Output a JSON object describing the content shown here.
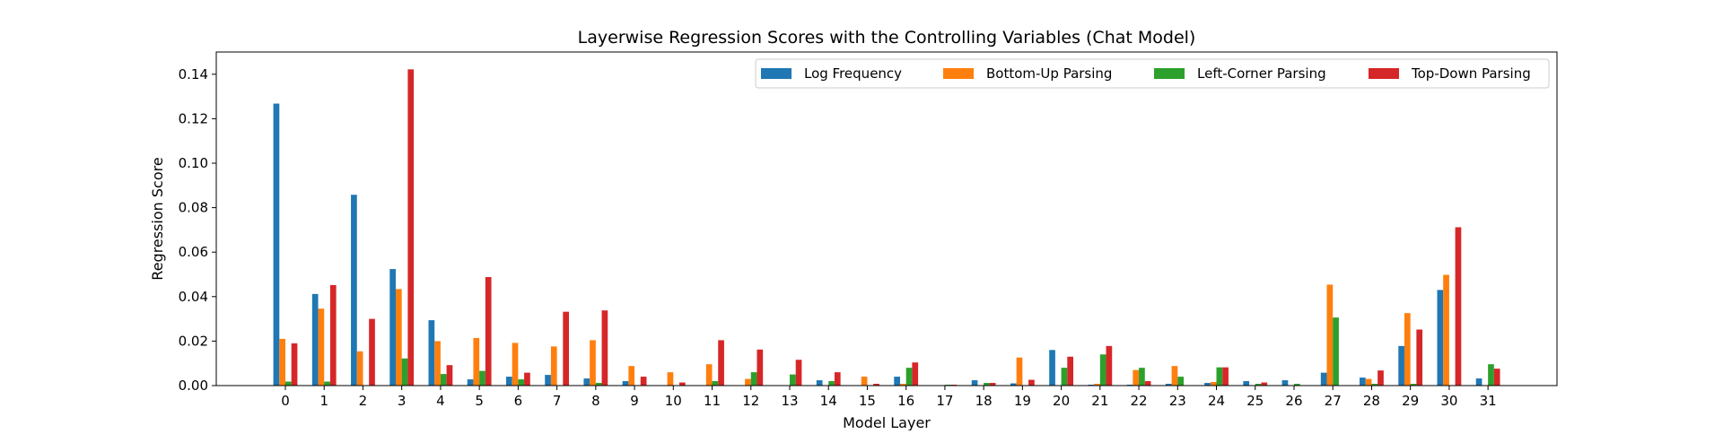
{
  "chart_data": {
    "type": "bar",
    "title": "Layerwise Regression Scores with the Controlling Variables (Chat Model)",
    "xlabel": "Model Layer",
    "ylabel": "Regression Score",
    "ylim": [
      0,
      0.15
    ],
    "yticks": [
      0.0,
      0.02,
      0.04,
      0.06,
      0.08,
      0.1,
      0.12,
      0.14
    ],
    "ytick_labels": [
      "0.00",
      "0.02",
      "0.04",
      "0.06",
      "0.08",
      "0.10",
      "0.12",
      "0.14"
    ],
    "categories": [
      "0",
      "1",
      "2",
      "3",
      "4",
      "5",
      "6",
      "7",
      "8",
      "9",
      "10",
      "11",
      "12",
      "13",
      "14",
      "15",
      "16",
      "17",
      "18",
      "19",
      "20",
      "21",
      "22",
      "23",
      "24",
      "25",
      "26",
      "27",
      "28",
      "29",
      "30",
      "31"
    ],
    "legend_position": "top-right",
    "grid": false,
    "series": [
      {
        "name": "Log Frequency",
        "color": "#1f77b4",
        "values": [
          0.1268,
          0.0412,
          0.0858,
          0.0524,
          0.0294,
          0.0028,
          0.004,
          0.0048,
          0.0032,
          0.002,
          0.0,
          0.0,
          0.0,
          0.0,
          0.0024,
          0.0,
          0.004,
          0.0,
          0.0024,
          0.001,
          0.016,
          0.0004,
          0.0004,
          0.0008,
          0.0012,
          0.002,
          0.0024,
          0.0058,
          0.0036,
          0.0178,
          0.043,
          0.0032
        ]
      },
      {
        "name": "Bottom-Up Parsing",
        "color": "#ff7f0e",
        "values": [
          0.021,
          0.0346,
          0.0154,
          0.0434,
          0.02,
          0.0214,
          0.0192,
          0.0176,
          0.0204,
          0.0088,
          0.006,
          0.0096,
          0.003,
          0.0,
          0.0,
          0.004,
          0.0008,
          0.0,
          0.0,
          0.0126,
          0.0,
          0.0008,
          0.007,
          0.0088,
          0.0016,
          0.0,
          0.0,
          0.0454,
          0.003,
          0.0326,
          0.0498,
          0.0
        ]
      },
      {
        "name": "Left-Corner Parsing",
        "color": "#2ca02c",
        "values": [
          0.0018,
          0.0018,
          0.0,
          0.0122,
          0.0052,
          0.0066,
          0.0028,
          0.0,
          0.0012,
          0.0,
          0.0,
          0.002,
          0.006,
          0.005,
          0.002,
          0.0,
          0.008,
          0.0004,
          0.0012,
          0.0,
          0.008,
          0.014,
          0.008,
          0.004,
          0.0082,
          0.0008,
          0.0008,
          0.0306,
          0.0008,
          0.0008,
          0.0,
          0.0096
        ]
      },
      {
        "name": "Top-Down Parsing",
        "color": "#d62728",
        "values": [
          0.019,
          0.0452,
          0.03,
          0.1422,
          0.0092,
          0.0488,
          0.0058,
          0.0332,
          0.0338,
          0.004,
          0.0014,
          0.0204,
          0.0162,
          0.0116,
          0.006,
          0.0008,
          0.0104,
          0.0004,
          0.0012,
          0.0026,
          0.013,
          0.0178,
          0.002,
          0.0,
          0.0082,
          0.0014,
          0.0,
          0.0,
          0.0068,
          0.0252,
          0.0712,
          0.0076
        ]
      }
    ]
  }
}
